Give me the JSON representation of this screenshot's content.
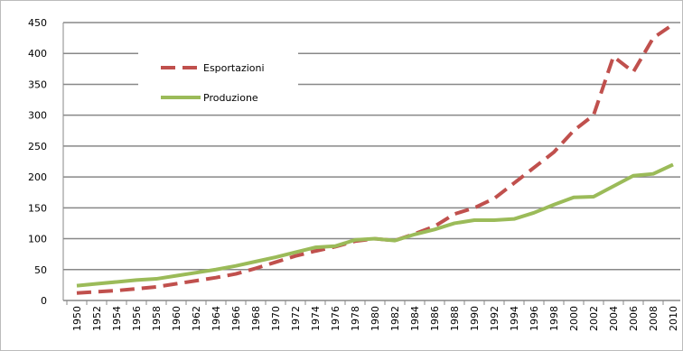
{
  "chart_data": {
    "type": "line",
    "categories": [
      "1950",
      "1952",
      "1954",
      "1956",
      "1958",
      "1960",
      "1962",
      "1964",
      "1966",
      "1968",
      "1970",
      "1972",
      "1974",
      "1976",
      "1978",
      "1980",
      "1982",
      "1984",
      "1986",
      "1988",
      "1990",
      "1992",
      "1994",
      "1996",
      "1998",
      "2000",
      "2002",
      "2004",
      "2006",
      "2008",
      "2010"
    ],
    "series": [
      {
        "name": "Esportazioni",
        "color": "#c0504d",
        "dashed": true,
        "values": [
          12,
          14,
          16,
          19,
          22,
          27,
          32,
          37,
          43,
          52,
          62,
          72,
          80,
          87,
          96,
          100,
          97,
          108,
          120,
          140,
          150,
          165,
          190,
          215,
          240,
          275,
          300,
          395,
          370,
          425,
          447
        ]
      },
      {
        "name": "Produzione",
        "color": "#9bbb59",
        "dashed": false,
        "values": [
          24,
          27,
          30,
          33,
          35,
          40,
          45,
          50,
          56,
          63,
          70,
          78,
          86,
          88,
          98,
          100,
          97,
          107,
          115,
          125,
          130,
          130,
          132,
          142,
          155,
          167,
          168,
          185,
          202,
          205,
          220
        ]
      }
    ],
    "ylim": [
      0,
      450
    ],
    "yticks": [
      0,
      50,
      100,
      150,
      200,
      250,
      300,
      350,
      400,
      450
    ],
    "grid": true
  }
}
